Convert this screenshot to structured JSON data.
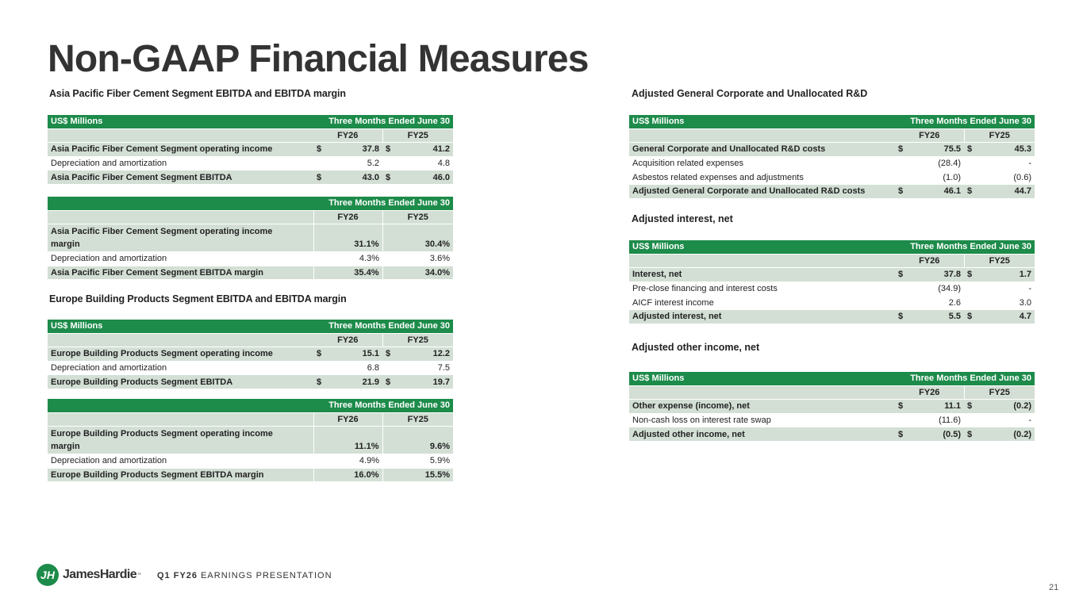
{
  "title": "Non-GAAP Financial Measures",
  "footer": {
    "brand": "JamesHardie",
    "trademark": "™",
    "logo_letters": "JH",
    "quarter": "Q1 FY26",
    "presentation": "EARNINGS PRESENTATION",
    "page": "21"
  },
  "left": {
    "ap_title": "Asia Pacific Fiber Cement Segment EBITDA and EBITDA margin",
    "ap_ebitda": {
      "unit": "US$ Millions",
      "period": "Three Months Ended June 30",
      "fy26": "FY26",
      "fy25": "FY25",
      "rows": [
        {
          "label": "Asia Pacific Fiber Cement Segment operating income",
          "d1": "$",
          "v1": "37.8",
          "d2": "$",
          "v2": "41.2"
        },
        {
          "label": "Depreciation and amortization",
          "d1": "",
          "v1": "5.2",
          "d2": "",
          "v2": "4.8"
        },
        {
          "label": "Asia Pacific Fiber Cement Segment EBITDA",
          "d1": "$",
          "v1": "43.0",
          "d2": "$",
          "v2": "46.0"
        }
      ]
    },
    "ap_margin": {
      "period": "Three Months Ended June 30",
      "fy26": "FY26",
      "fy25": "FY25",
      "rows": [
        {
          "label1": "Asia Pacific Fiber Cement Segment operating income",
          "label2": "margin",
          "v1": "31.1%",
          "v2": "30.4%"
        },
        {
          "label": "Depreciation and amortization",
          "v1": "4.3%",
          "v2": "3.6%"
        },
        {
          "label": "Asia Pacific Fiber Cement Segment EBITDA margin",
          "v1": "35.4%",
          "v2": "34.0%"
        }
      ]
    },
    "eu_title": "Europe Building Products Segment EBITDA and EBITDA margin",
    "eu_ebitda": {
      "unit": "US$ Millions",
      "period": "Three Months Ended June 30",
      "fy26": "FY26",
      "fy25": "FY25",
      "rows": [
        {
          "label": "Europe Building Products Segment operating income",
          "d1": "$",
          "v1": "15.1",
          "d2": "$",
          "v2": "12.2"
        },
        {
          "label": "Depreciation and amortization",
          "d1": "",
          "v1": "6.8",
          "d2": "",
          "v2": "7.5"
        },
        {
          "label": "Europe Building Products Segment EBITDA",
          "d1": "$",
          "v1": "21.9",
          "d2": "$",
          "v2": "19.7"
        }
      ]
    },
    "eu_margin": {
      "period": "Three Months Ended June 30",
      "fy26": "FY26",
      "fy25": "FY25",
      "rows": [
        {
          "label1": "Europe Building Products Segment operating income",
          "label2": "margin",
          "v1": "11.1%",
          "v2": "9.6%"
        },
        {
          "label": "Depreciation and amortization",
          "v1": "4.9%",
          "v2": "5.9%"
        },
        {
          "label": "Europe Building Products Segment EBITDA margin",
          "v1": "16.0%",
          "v2": "15.5%"
        }
      ]
    }
  },
  "right": {
    "corp_title": "Adjusted General Corporate and Unallocated R&D",
    "corp": {
      "unit": "US$ Millions",
      "period": "Three Months Ended June 30",
      "fy26": "FY26",
      "fy25": "FY25",
      "rows": [
        {
          "label": "General Corporate and Unallocated R&D costs",
          "d1": "$",
          "v1": "75.5",
          "d2": "$",
          "v2": "45.3"
        },
        {
          "label": "Acquisition related expenses",
          "d1": "",
          "v1": "(28.4)",
          "d2": "",
          "v2": "-"
        },
        {
          "label": "Asbestos related expenses and adjustments",
          "d1": "",
          "v1": "(1.0)",
          "d2": "",
          "v2": "(0.6)"
        },
        {
          "label": "Adjusted General Corporate and Unallocated R&D costs",
          "d1": "$",
          "v1": "46.1",
          "d2": "$",
          "v2": "44.7"
        }
      ]
    },
    "int_title": "Adjusted interest, net",
    "interest": {
      "unit": "US$ Millions",
      "period": "Three Months Ended June 30",
      "fy26": "FY26",
      "fy25": "FY25",
      "rows": [
        {
          "label": "Interest, net",
          "d1": "$",
          "v1": "37.8",
          "d2": "$",
          "v2": "1.7"
        },
        {
          "label": "Pre-close financing and interest costs",
          "d1": "",
          "v1": "(34.9)",
          "d2": "",
          "v2": "-"
        },
        {
          "label": "AICF interest income",
          "d1": "",
          "v1": "2.6",
          "d2": "",
          "v2": "3.0"
        },
        {
          "label": "Adjusted interest, net",
          "d1": "$",
          "v1": "5.5",
          "d2": "$",
          "v2": "4.7"
        }
      ]
    },
    "oth_title": "Adjusted other income, net",
    "other": {
      "unit": "US$ Millions",
      "period": "Three Months Ended June 30",
      "fy26": "FY26",
      "fy25": "FY25",
      "rows": [
        {
          "label": "Other expense (income), net",
          "d1": "$",
          "v1": "11.1",
          "d2": "$",
          "v2": "(0.2)"
        },
        {
          "label": "Non-cash loss on interest rate swap",
          "d1": "",
          "v1": "(11.6)",
          "d2": "",
          "v2": "-"
        },
        {
          "label": "Adjusted other income, net",
          "d1": "$",
          "v1": "(0.5)",
          "d2": "$",
          "v2": "(0.2)"
        }
      ]
    }
  }
}
